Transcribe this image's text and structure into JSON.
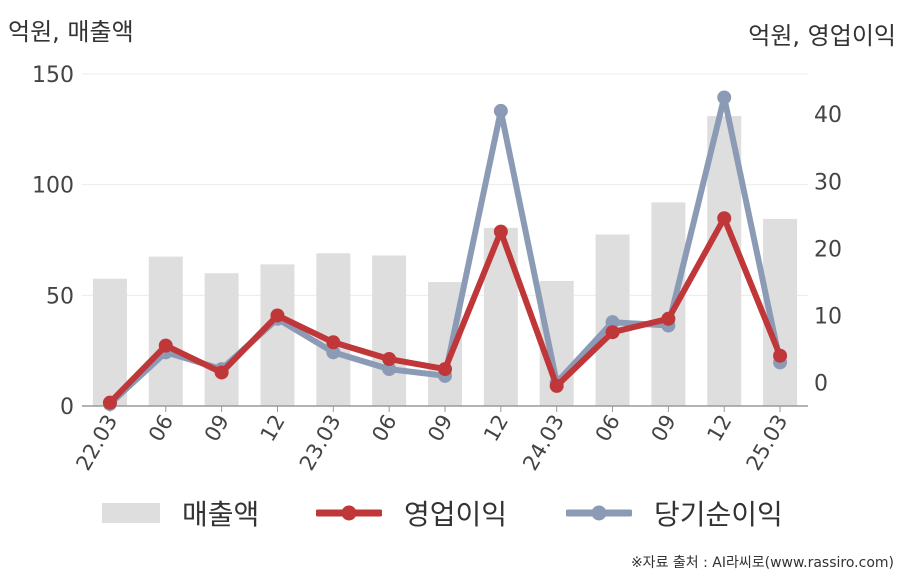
{
  "chart_data": {
    "type": "bar+line",
    "categories": [
      "22.03",
      "06",
      "09",
      "12",
      "23.03",
      "06",
      "09",
      "12",
      "24.03",
      "06",
      "09",
      "12",
      "25.03"
    ],
    "y_left": {
      "label": "억원, 매출액",
      "ylim": [
        0,
        150
      ],
      "ticks": [
        0,
        50,
        100,
        150
      ]
    },
    "y_right": {
      "label": "억원, 영업이익",
      "ylim": [
        -3.5,
        46
      ],
      "ticks": [
        0,
        10,
        20,
        30,
        40
      ]
    },
    "series": [
      {
        "name": "매출액",
        "type": "bar",
        "axis": "left",
        "color": "#dedede",
        "values": [
          57.5,
          67.5,
          60,
          64,
          69,
          68,
          56,
          80.5,
          56.5,
          77.5,
          92,
          131,
          84.5
        ]
      },
      {
        "name": "영업이익",
        "type": "line",
        "axis": "right",
        "color": "#c0373a",
        "values": [
          -3,
          5.5,
          1.5,
          10,
          6,
          3.5,
          2,
          22.5,
          -0.5,
          7.5,
          9.5,
          24.5,
          4
        ]
      },
      {
        "name": "당기순이익",
        "type": "line",
        "axis": "right",
        "color": "#8c9bb5",
        "values": [
          -3.2,
          4.5,
          2,
          9.5,
          4.5,
          2,
          1,
          40.5,
          0,
          9,
          8.5,
          42.5,
          3
        ]
      }
    ],
    "grid": true,
    "legend": "bottom"
  },
  "legend": {
    "sales": "매출액",
    "op": "영업이익",
    "net": "당기순이익"
  },
  "source": "※자료 출처 : AI라씨로(www.rassiro.com)"
}
